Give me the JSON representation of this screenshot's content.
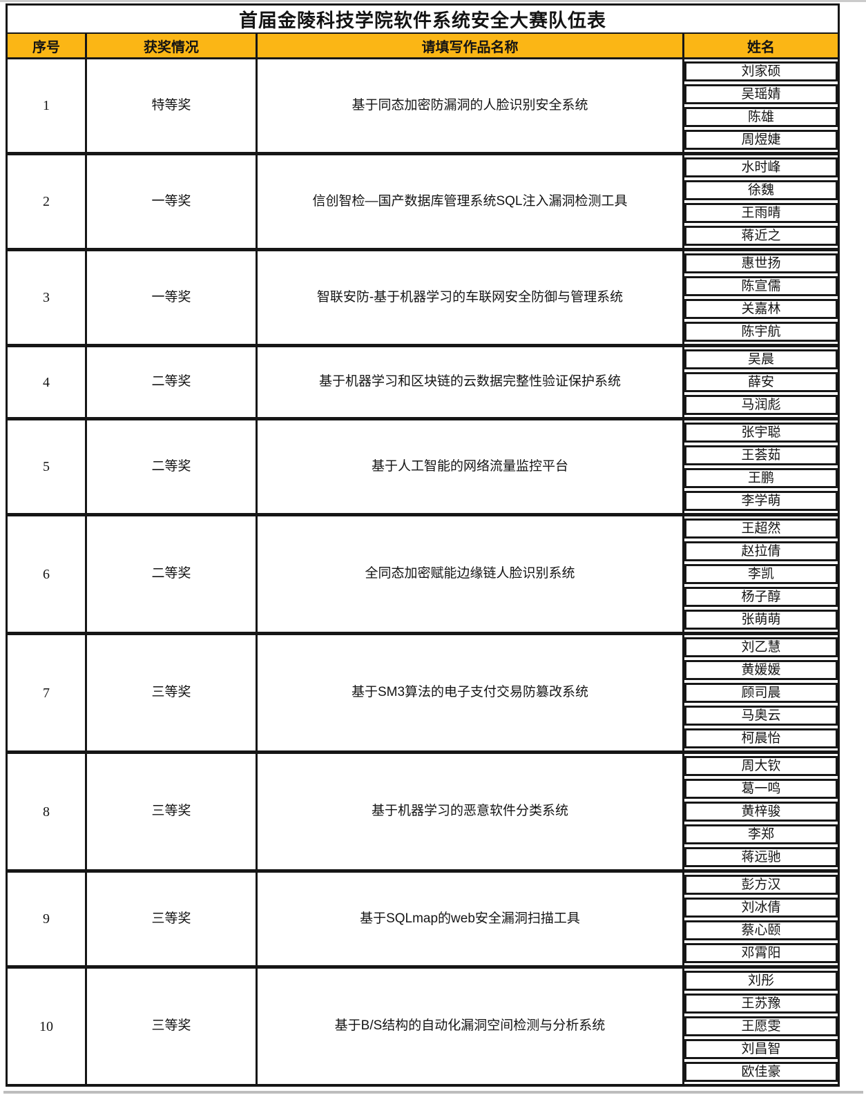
{
  "page": {
    "title": "首届金陵科技学院软件系统安全大赛队伍表"
  },
  "colors": {
    "header_background": "#fbb615",
    "border": "#161616",
    "page_edge": "#bdbdbd"
  },
  "table": {
    "headers": [
      "序号",
      "获奖情况",
      "请填写作品名称",
      "姓名"
    ],
    "teams": [
      {
        "no": "1",
        "award": "特等奖",
        "project": "基于同态加密防漏洞的人脸识别安全系统",
        "names": [
          "刘家硕",
          "吴瑶婧",
          "陈雄",
          "周煜婕"
        ]
      },
      {
        "no": "2",
        "award": "一等奖",
        "project": "信创智检—国产数据库管理系统SQL注入漏洞检测工具",
        "names": [
          "水时峰",
          "徐魏",
          "王雨晴",
          "蒋近之"
        ]
      },
      {
        "no": "3",
        "award": "一等奖",
        "project": "智联安防-基于机器学习的车联网安全防御与管理系统",
        "names": [
          "惠世扬",
          "陈宣儒",
          "关嘉林",
          "陈宇航"
        ]
      },
      {
        "no": "4",
        "award": "二等奖",
        "project": "基于机器学习和区块链的云数据完整性验证保护系统",
        "names": [
          "吴晨",
          "薛安",
          "马润彪"
        ]
      },
      {
        "no": "5",
        "award": "二等奖",
        "project": "基于人工智能的网络流量监控平台",
        "names": [
          "张宇聪",
          "王荟茹",
          "王鹏",
          "李学萌"
        ]
      },
      {
        "no": "6",
        "award": "二等奖",
        "project": "全同态加密赋能边缘链人脸识别系统",
        "names": [
          "王超然",
          "赵拉倩",
          "李凯",
          "杨子醇",
          "张萌萌"
        ]
      },
      {
        "no": "7",
        "award": "三等奖",
        "project": "基于SM3算法的电子支付交易防篡改系统",
        "names": [
          "刘乙慧",
          "黄媛媛",
          "顾司晨",
          "马奥云",
          "柯晨怡"
        ]
      },
      {
        "no": "8",
        "award": "三等奖",
        "project": "基于机器学习的恶意软件分类系统",
        "names": [
          "周大钦",
          "葛一鸣",
          "黄梓骏",
          "李郑",
          "蒋远驰"
        ]
      },
      {
        "no": "9",
        "award": "三等奖",
        "project": "基于SQLmap的web安全漏洞扫描工具",
        "names": [
          "彭方汉",
          "刘冰倩",
          "蔡心颐",
          "邓霄阳"
        ]
      },
      {
        "no": "10",
        "award": "三等奖",
        "project": "基于B/S结构的自动化漏洞空间检测与分析系统",
        "names": [
          "刘彤",
          "王苏豫",
          "王愿雯",
          "刘昌智",
          "欧佳豪"
        ]
      }
    ]
  }
}
